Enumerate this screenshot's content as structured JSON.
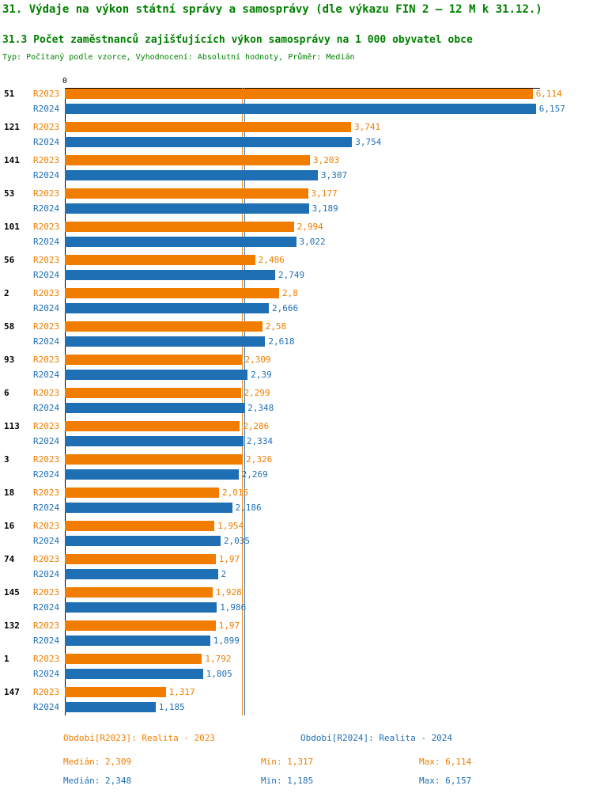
{
  "header": {
    "title": "31. Výdaje na výkon státní správy a samosprávy (dle výkazu FIN 2 – 12 M k 31.12.)",
    "subtitle": "31.3 Počet zaměstnanců zajišťujících výkon samosprávy na 1 000 obyvatel obce",
    "meta": "Typ: Počítaný podle vzorce, Vyhodnocení: Absolutní hodnoty, Průměr: Medián"
  },
  "colors": {
    "r2023_orange": "#f07d00",
    "r2024_blue": "#1f6fb4",
    "heading_green": "#008000",
    "axis_black": "#000000"
  },
  "chart_data": {
    "type": "bar",
    "orientation": "horizontal",
    "x_axis_zero_label": "0",
    "xlim": [
      0,
      6.2
    ],
    "grid": false,
    "legend_position": "bottom",
    "categories": [
      "51",
      "121",
      "141",
      "53",
      "101",
      "56",
      "2",
      "58",
      "93",
      "6",
      "113",
      "3",
      "18",
      "16",
      "74",
      "145",
      "132",
      "1",
      "147"
    ],
    "series": [
      {
        "name": "R2023",
        "color": "#f07d00",
        "median": 2.309,
        "values": [
          6.114,
          3.741,
          3.203,
          3.177,
          2.994,
          2.486,
          2.8,
          2.58,
          2.309,
          2.299,
          2.286,
          2.326,
          2.015,
          1.954,
          1.97,
          1.928,
          1.97,
          1.792,
          1.317
        ],
        "labels": [
          "6,114",
          "3,741",
          "3,203",
          "3,177",
          "2,994",
          "2,486",
          "2,8",
          "2,58",
          "2,309",
          "2,299",
          "2,286",
          "2,326",
          "2,015",
          "1,954",
          "1,97",
          "1,928",
          "1,97",
          "1,792",
          "1,317"
        ]
      },
      {
        "name": "R2024",
        "color": "#1f6fb4",
        "median": 2.348,
        "values": [
          6.157,
          3.754,
          3.307,
          3.189,
          3.022,
          2.749,
          2.666,
          2.618,
          2.39,
          2.348,
          2.334,
          2.269,
          2.186,
          2.035,
          2,
          1.986,
          1.899,
          1.805,
          1.185
        ],
        "labels": [
          "6,157",
          "3,754",
          "3,307",
          "3,189",
          "3,022",
          "2,749",
          "2,666",
          "2,618",
          "2,39",
          "2,348",
          "2,334",
          "2,269",
          "2,186",
          "2,035",
          "2",
          "1,986",
          "1,899",
          "1,805",
          "1,185"
        ]
      }
    ]
  },
  "legend": {
    "period_r2023": "Období[R2023]: Realita - 2023",
    "period_r2024": "Období[R2024]: Realita - 2024",
    "r2023_median": "Medián: 2,309",
    "r2023_min": "Min: 1,317",
    "r2023_max": "Max: 6,114",
    "r2024_median": "Medián: 2,348",
    "r2024_min": "Min: 1,185",
    "r2024_max": "Max: 6,157"
  }
}
